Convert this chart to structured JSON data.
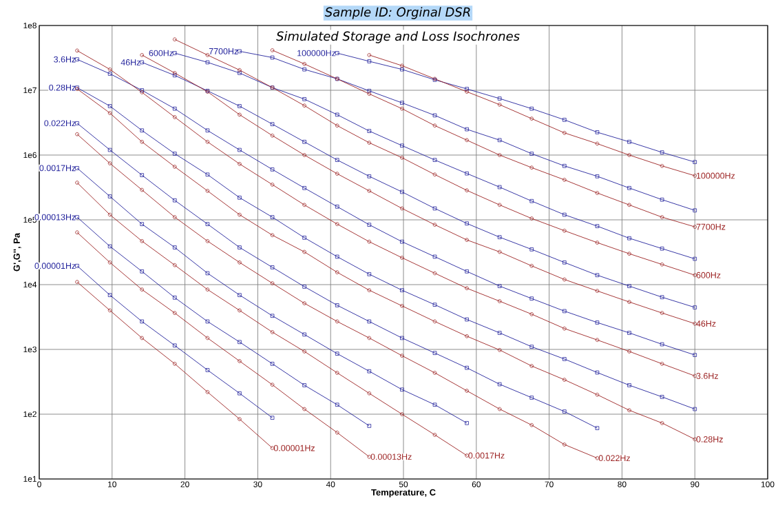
{
  "chart_data": {
    "type": "line",
    "title": "Sample ID: Orginal DSR",
    "subtitle": "Simulated Storage and Loss Isochrones",
    "xlabel": "Temperature, C",
    "ylabel": "G',G'', Pa",
    "xlim": [
      0,
      100
    ],
    "ylim": [
      10,
      100000000
    ],
    "log": "y",
    "grid": true,
    "xticks": [
      0,
      10,
      20,
      30,
      40,
      50,
      60,
      70,
      80,
      90,
      100
    ],
    "yticks": [
      {
        "value": 10,
        "label": "1e1"
      },
      {
        "value": 100,
        "label": "1e2"
      },
      {
        "value": 1000,
        "label": "1e3"
      },
      {
        "value": 10000,
        "label": "1e4"
      },
      {
        "value": 100000,
        "label": "1e5"
      },
      {
        "value": 1000000,
        "label": "1e6"
      },
      {
        "value": 10000000,
        "label": "1e7"
      },
      {
        "value": 100000000,
        "label": "1e8"
      }
    ],
    "series": [
      {
        "name": "0.00001Hz",
        "color": "#23239c",
        "marker": "square",
        "x": [
          5.2,
          9.7,
          14.1,
          18.6,
          23.1,
          27.5,
          32
        ],
        "values": [
          19500.0,
          6900.0,
          2700.0,
          1150.0,
          480,
          210,
          88
        ]
      },
      {
        "name": "0.00013Hz",
        "color": "#23239c",
        "marker": "square",
        "x": [
          5.2,
          9.7,
          14.1,
          18.6,
          23.1,
          27.5,
          32,
          36.4,
          40.9,
          45.3
        ],
        "values": [
          110000.0,
          39000.0,
          16000.0,
          6300.0,
          2700.0,
          1300.0,
          600,
          280,
          140,
          66
        ]
      },
      {
        "name": "0.0017Hz",
        "color": "#23239c",
        "marker": "square",
        "x": [
          5.2,
          9.7,
          14.1,
          18.6,
          23.1,
          27.5,
          32,
          36.4,
          40.9,
          45.3,
          49.8,
          54.3,
          58.7
        ],
        "values": [
          630000.0,
          230000.0,
          86000.0,
          37500.0,
          15000.0,
          6900.0,
          3300.0,
          1700.0,
          860,
          460,
          240,
          140,
          73
        ]
      },
      {
        "name": "0.022Hz",
        "color": "#23239c",
        "marker": "square",
        "x": [
          5.2,
          9.7,
          14.1,
          18.6,
          23.1,
          27.5,
          32,
          36.4,
          40.9,
          45.3,
          49.8,
          54.3,
          58.7,
          63.2,
          67.6,
          72.1,
          76.6
        ],
        "values": [
          3100000.0,
          1200000.0,
          490000.0,
          200000.0,
          86000.0,
          37500.0,
          18500.0,
          9300.0,
          4800.0,
          2700.0,
          1500.0,
          880,
          520,
          290,
          180,
          110,
          61
        ]
      },
      {
        "name": "0.28Hz",
        "color": "#23239c",
        "marker": "square",
        "x": [
          5.2,
          9.7,
          14.1,
          18.6,
          23.1,
          27.5,
          32,
          36.4,
          40.9,
          45.3,
          49.8,
          54.3,
          58.7,
          63.2,
          67.6,
          72.1,
          76.6,
          81,
          85.5,
          90
        ],
        "values": [
          11000000.0,
          5700000.0,
          2400000.0,
          1050000.0,
          500000.0,
          220000.0,
          110000.0,
          53000.0,
          27000.0,
          14500.0,
          8200.0,
          4900.0,
          2900.0,
          1800.0,
          1100.0,
          710,
          440,
          280,
          185,
          120
        ]
      },
      {
        "name": "3.6Hz",
        "color": "#23239c",
        "marker": "square",
        "x": [
          5.2,
          9.7,
          14.1,
          18.6,
          23.1,
          27.5,
          32,
          36.4,
          40.9,
          45.3,
          49.8,
          54.3,
          58.7,
          63.2,
          67.6,
          72.1,
          76.6,
          81,
          85.5,
          90
        ],
        "values": [
          30000000.0,
          18000000.0,
          10000000.0,
          5200000.0,
          2400000.0,
          1200000.0,
          600000.0,
          310000.0,
          160000.0,
          84000.0,
          46000.0,
          27000.0,
          16000.0,
          9500.0,
          6100.0,
          3900.0,
          2600.0,
          1800.0,
          1200.0,
          820
        ]
      },
      {
        "name": "46Hz",
        "color": "#23239c",
        "marker": "square",
        "x": [
          14.1,
          18.6,
          23.1,
          27.5,
          32,
          36.4,
          40.9,
          45.3,
          49.8,
          54.3,
          58.7,
          63.2,
          67.6,
          72.1,
          76.6,
          81,
          85.5,
          90
        ],
        "values": [
          27000000.0,
          17000000.0,
          9800000.0,
          5700000.0,
          3000000.0,
          1600000.0,
          840000.0,
          470000.0,
          270000.0,
          150000.0,
          88000.0,
          54000.0,
          35000.0,
          22000.0,
          14000.0,
          9500.0,
          6400.0,
          4450.0
        ]
      },
      {
        "name": "600Hz",
        "color": "#23239c",
        "marker": "square",
        "x": [
          18.6,
          23.1,
          27.5,
          32,
          36.4,
          40.9,
          45.3,
          49.8,
          54.3,
          58.7,
          63.2,
          67.6,
          72.1,
          76.6,
          81,
          85.5,
          90
        ],
        "values": [
          37500000.0,
          27000000.0,
          18500000.0,
          11000000.0,
          7300000.0,
          4200000.0,
          2350000.0,
          1400000.0,
          840000.0,
          520000.0,
          320000.0,
          195000.0,
          120000.0,
          80000.0,
          52000.0,
          36000.0,
          25000.0
        ]
      },
      {
        "name": "7700Hz",
        "color": "#23239c",
        "marker": "square",
        "x": [
          27.5,
          32,
          36.4,
          40.9,
          45.3,
          49.8,
          54.3,
          58.7,
          63.2,
          67.6,
          72.1,
          76.6,
          81,
          85.5,
          90
        ],
        "values": [
          40000000.0,
          32000000.0,
          21000000.0,
          15000000.0,
          9800000.0,
          6400000.0,
          4100000.0,
          2500000.0,
          1700000.0,
          1050000.0,
          680000.0,
          470000.0,
          310000.0,
          205000.0,
          140000.0
        ]
      },
      {
        "name": "100000Hz",
        "color": "#23239c",
        "marker": "square",
        "x": [
          40.9,
          45.3,
          49.8,
          54.3,
          58.7,
          63.2,
          67.6,
          72.1,
          76.6,
          81,
          85.5,
          90
        ],
        "values": [
          37500000.0,
          28000000.0,
          21000000.0,
          14500000.0,
          10500000.0,
          7450000.0,
          5200000.0,
          3500000.0,
          2250000.0,
          1600000.0,
          1100000.0,
          780000.0
        ]
      },
      {
        "name": "0.00001Hz",
        "color": "#9c2323",
        "marker": "circle",
        "x": [
          5.2,
          9.7,
          14.1,
          18.6,
          23.1,
          27.5,
          32
        ],
        "values": [
          11000.0,
          4000.0,
          1500.0,
          600,
          220,
          84,
          30
        ]
      },
      {
        "name": "0.00013Hz",
        "color": "#9c2323",
        "marker": "circle",
        "x": [
          5.2,
          9.7,
          14.1,
          18.6,
          23.1,
          27.5,
          32,
          36.4,
          40.9,
          45.3
        ],
        "values": [
          64000.0,
          22000.0,
          8400.0,
          3650.0,
          1500.0,
          660,
          285,
          120,
          52,
          22
        ]
      },
      {
        "name": "0.0017Hz",
        "color": "#9c2323",
        "marker": "circle",
        "x": [
          5.2,
          9.7,
          14.1,
          18.6,
          23.1,
          27.5,
          32,
          36.4,
          40.9,
          45.3,
          49.8,
          54.3,
          58.7
        ],
        "values": [
          375000.0,
          120000.0,
          47000.0,
          20000.0,
          8400.0,
          4000.0,
          1850.0,
          930,
          435,
          210,
          100,
          48,
          23
        ]
      },
      {
        "name": "0.022Hz",
        "color": "#9c2323",
        "marker": "circle",
        "x": [
          5.2,
          9.7,
          14.1,
          18.6,
          23.1,
          27.5,
          32,
          36.4,
          40.9,
          45.3,
          49.8,
          54.3,
          58.7,
          63.2,
          67.6,
          72.1,
          76.6
        ],
        "values": [
          2100000.0,
          745000.0,
          290000.0,
          110000.0,
          47000.0,
          22000.0,
          10500.0,
          5150.0,
          2700.0,
          1500.0,
          800,
          435,
          230,
          120,
          68,
          34,
          21
        ]
      },
      {
        "name": "0.28Hz",
        "color": "#9c2323",
        "marker": "circle",
        "x": [
          5.2,
          9.7,
          14.1,
          18.6,
          23.1,
          27.5,
          32,
          36.4,
          40.9,
          45.3,
          49.8,
          54.3,
          58.7,
          63.2,
          67.6,
          72.1,
          76.6,
          81,
          85.5,
          90
        ],
        "values": [
          10500000.0,
          4450000.0,
          1600000.0,
          660000.0,
          280000.0,
          120000.0,
          58000.0,
          32000.0,
          15500.0,
          8200.0,
          4700.0,
          2700.0,
          1600.0,
          980,
          555,
          340,
          200,
          115,
          73,
          41
        ]
      },
      {
        "name": "3.6Hz",
        "color": "#9c2323",
        "marker": "circle",
        "x": [
          5.2,
          9.7,
          14.1,
          18.6,
          23.1,
          27.5,
          32,
          36.4,
          40.9,
          45.3,
          49.8,
          54.3,
          58.7,
          63.2,
          67.6,
          72.1,
          76.6,
          81,
          85.5,
          90
        ],
        "values": [
          41000000.0,
          21000000.0,
          9300000.0,
          3850000.0,
          1600000.0,
          730000.0,
          350000.0,
          170000.0,
          86000.0,
          46000.0,
          26000.0,
          15000.0,
          8800.0,
          5550.0,
          3500.0,
          2100.0,
          1400.0,
          930,
          600,
          390
        ]
      },
      {
        "name": "46Hz",
        "color": "#9c2323",
        "marker": "circle",
        "x": [
          14.1,
          18.6,
          23.1,
          27.5,
          32,
          36.4,
          40.9,
          45.3,
          49.8,
          54.3,
          58.7,
          63.2,
          67.6,
          72.1,
          76.6,
          81,
          85.5,
          90
        ],
        "values": [
          35000000.0,
          18500000.0,
          9500000.0,
          4200000.0,
          2000000.0,
          1000000.0,
          515000.0,
          280000.0,
          150000.0,
          84000.0,
          49000.0,
          32000.0,
          19500.0,
          12000.0,
          8000.0,
          5400.0,
          3650.0,
          2500.0
        ]
      },
      {
        "name": "600Hz",
        "color": "#9c2323",
        "marker": "circle",
        "x": [
          18.6,
          23.1,
          27.5,
          32,
          36.4,
          40.9,
          45.3,
          49.8,
          54.3,
          58.7,
          63.2,
          67.6,
          72.1,
          76.6,
          81,
          85.5,
          90
        ],
        "values": [
          61000000.0,
          35000000.0,
          20500000.0,
          11000000.0,
          5800000.0,
          2850000.0,
          1550000.0,
          910000.0,
          500000.0,
          285000.0,
          170000.0,
          105000.0,
          68000.0,
          44500.0,
          30000.0,
          20500.0,
          14000.0
        ]
      },
      {
        "name": "7700Hz",
        "color": "#9c2323",
        "marker": "circle",
        "x": [
          32,
          36.4,
          40.9,
          45.3,
          49.8,
          54.3,
          58.7,
          63.2,
          67.6,
          72.1,
          76.6,
          81,
          85.5,
          90
        ],
        "values": [
          41500000.0,
          25500000.0,
          15000000.0,
          8800000.0,
          5200000.0,
          2850000.0,
          1700000.0,
          1000000.0,
          640000.0,
          415000.0,
          260000.0,
          170000.0,
          110000.0,
          78000.0
        ]
      },
      {
        "name": "100000Hz",
        "color": "#9c2323",
        "marker": "circle",
        "x": [
          45.3,
          49.8,
          54.3,
          58.7,
          63.2,
          67.6,
          72.1,
          76.6,
          81,
          85.5,
          90
        ],
        "values": [
          35000000.0,
          24000000.0,
          15000000.0,
          9500000.0,
          6000000.0,
          3650000.0,
          2200000.0,
          1500000.0,
          1000000.0,
          680000.0,
          480000.0
        ]
      }
    ]
  }
}
